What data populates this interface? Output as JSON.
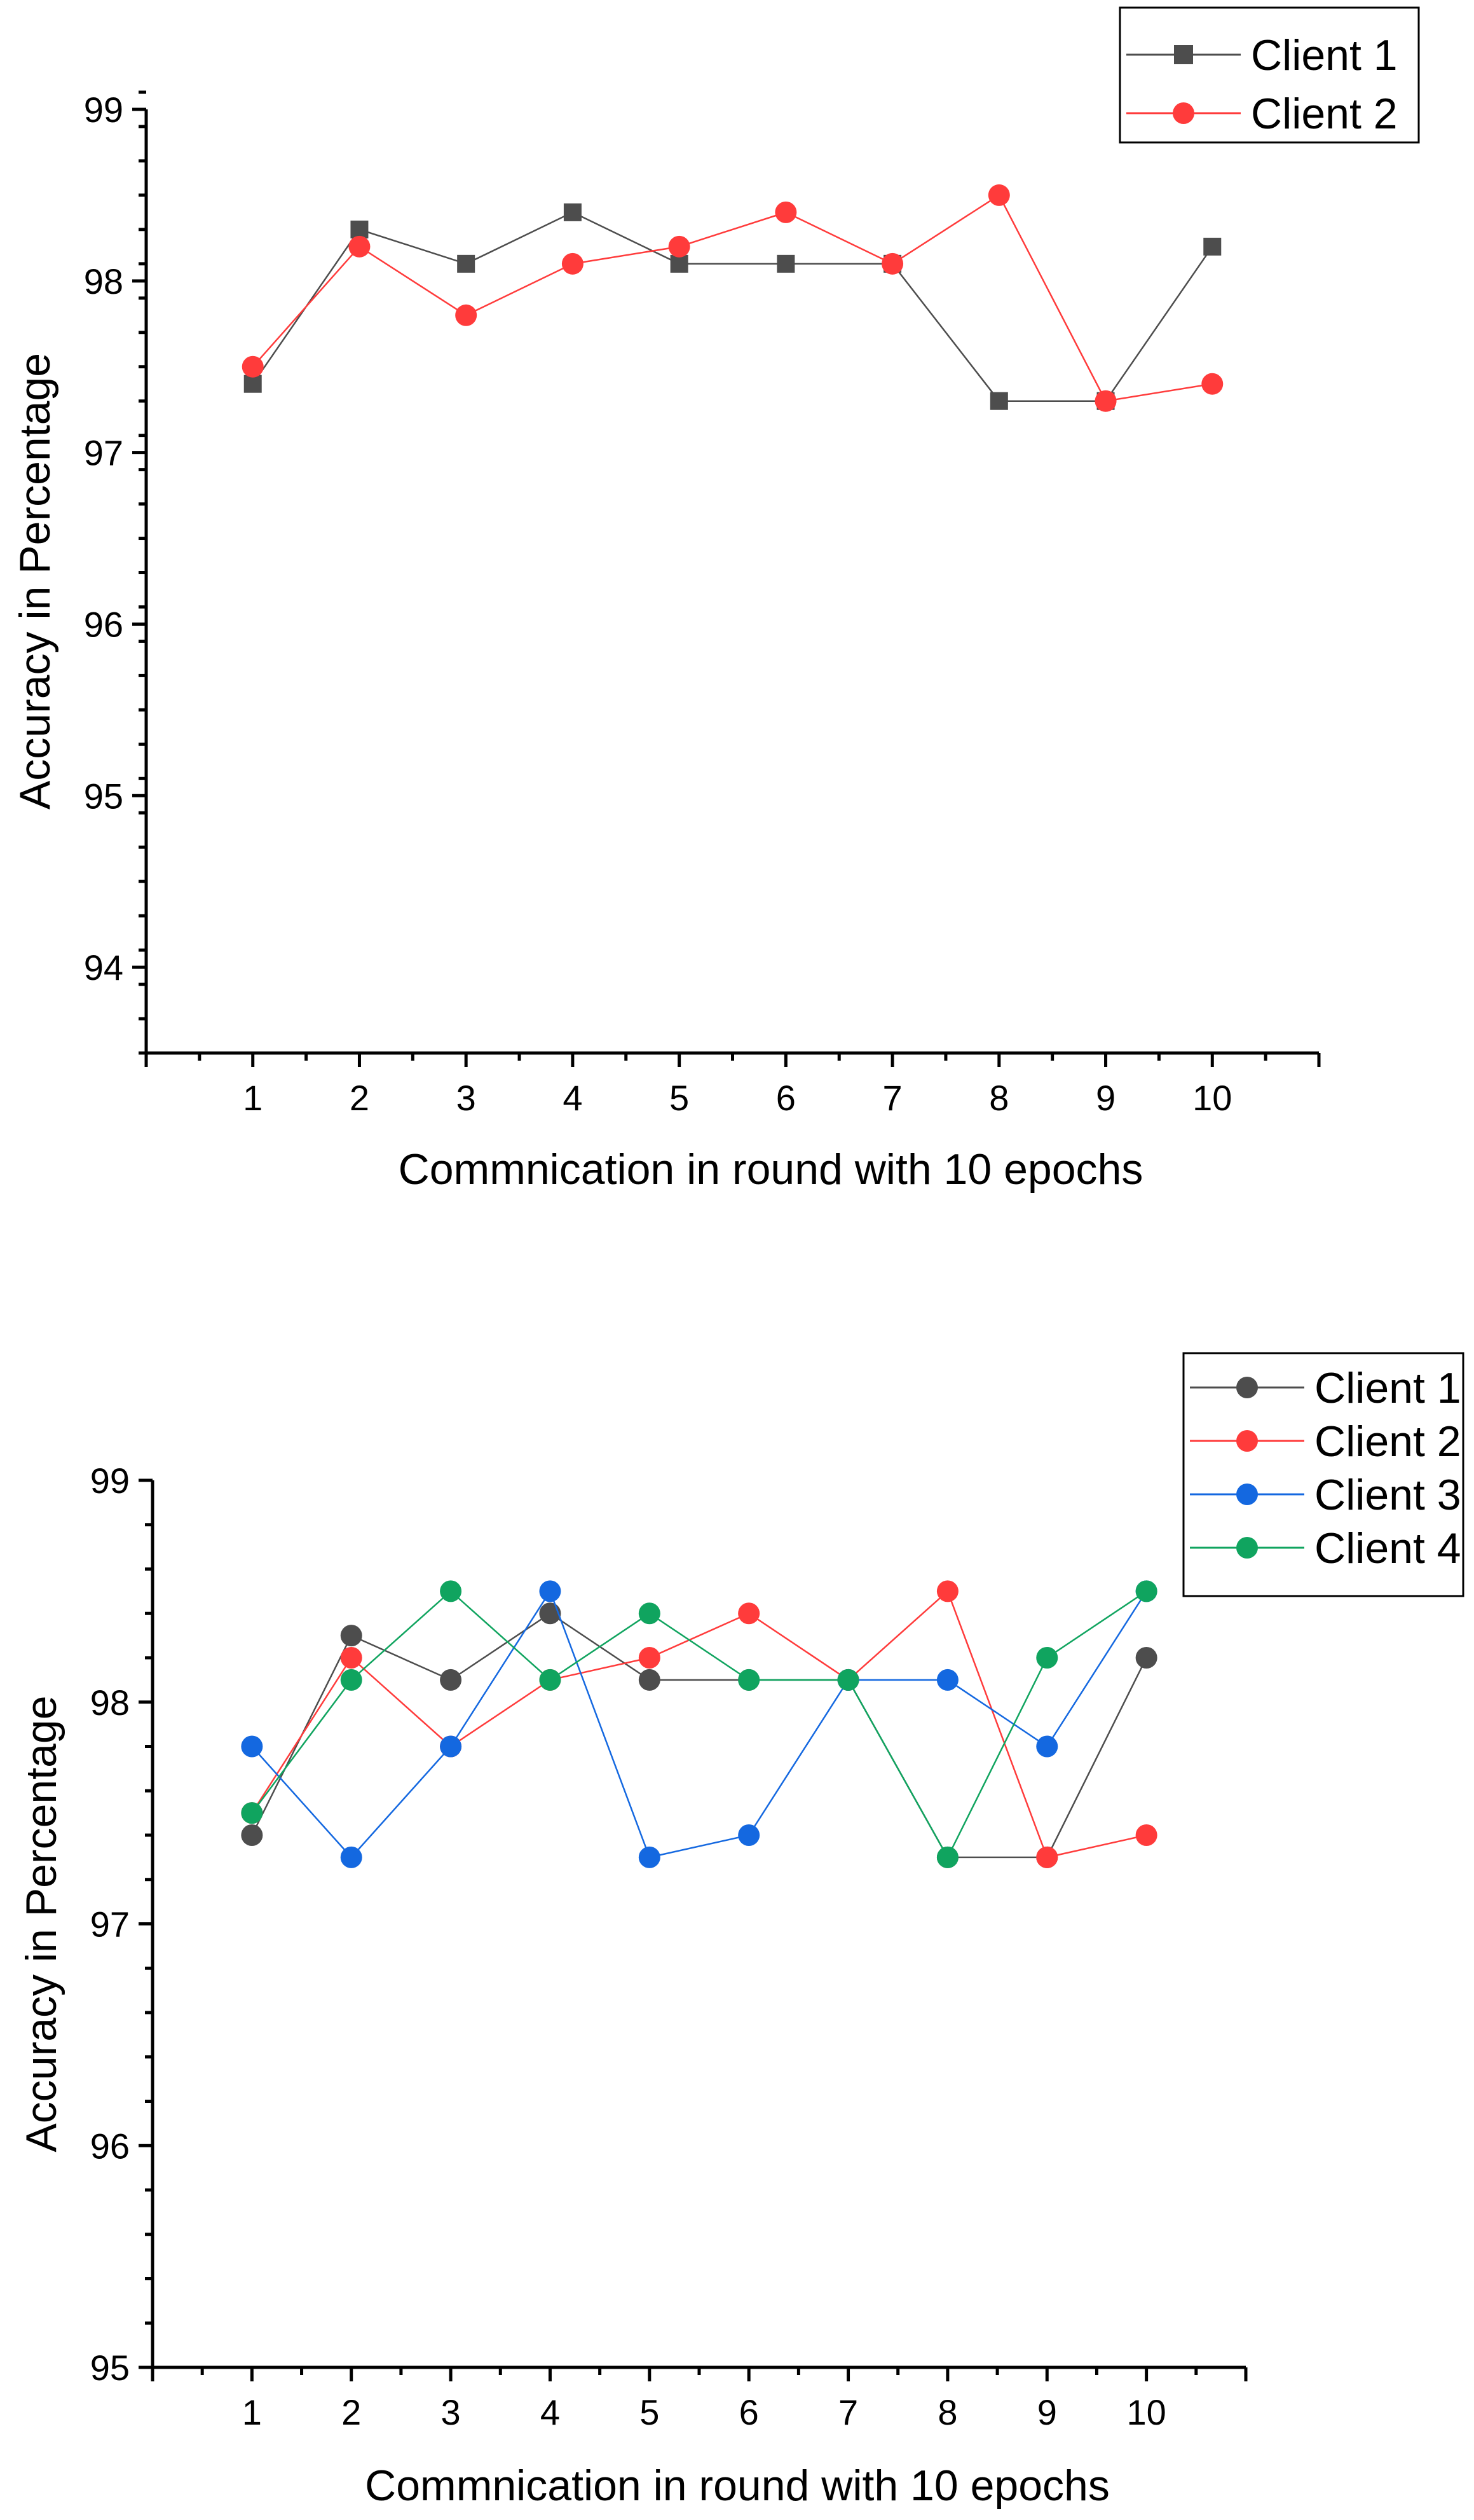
{
  "chart_data": [
    {
      "type": "line",
      "title": "",
      "xlabel": "Commnication in round with 10 epochs",
      "ylabel": "Accuracy in Percentage",
      "x": [
        1,
        2,
        3,
        4,
        5,
        6,
        7,
        8,
        9,
        10
      ],
      "xlim": [
        0,
        11
      ],
      "ylim": [
        93.5,
        99
      ],
      "yticks": [
        94,
        95,
        96,
        97,
        98,
        99
      ],
      "legend_position": "top-right",
      "series": [
        {
          "name": "Client 1",
          "color": "#4d4d4d",
          "marker": "square",
          "values": [
            97.4,
            98.3,
            98.1,
            98.4,
            98.1,
            98.1,
            98.1,
            97.3,
            97.3,
            98.2
          ]
        },
        {
          "name": "Client 2",
          "color": "#ff3b3b",
          "marker": "circle",
          "values": [
            97.5,
            98.2,
            97.8,
            98.1,
            98.2,
            98.4,
            98.1,
            98.5,
            97.3,
            97.4
          ]
        }
      ]
    },
    {
      "type": "line",
      "title": "",
      "xlabel": "Commnication in round with 10 epochs",
      "ylabel": "Accuracy in Percentage",
      "x": [
        1,
        2,
        3,
        4,
        5,
        6,
        7,
        8,
        9,
        10
      ],
      "xlim": [
        0,
        11
      ],
      "ylim": [
        95,
        99
      ],
      "yticks": [
        95,
        96,
        97,
        98,
        99
      ],
      "legend_position": "top-right",
      "series": [
        {
          "name": "Client 1",
          "color": "#4d4d4d",
          "marker": "circle",
          "values": [
            97.4,
            98.3,
            98.1,
            98.4,
            98.1,
            98.1,
            98.1,
            97.3,
            97.3,
            98.2
          ]
        },
        {
          "name": "Client 2",
          "color": "#ff3b3b",
          "marker": "circle",
          "values": [
            97.5,
            98.2,
            97.8,
            98.1,
            98.2,
            98.4,
            98.1,
            98.5,
            97.3,
            97.4
          ]
        },
        {
          "name": "Client 3",
          "color": "#1468e0",
          "marker": "circle",
          "values": [
            97.8,
            97.3,
            97.8,
            98.5,
            97.3,
            97.4,
            98.1,
            98.1,
            97.8,
            98.5
          ]
        },
        {
          "name": "Client 4",
          "color": "#10a45f",
          "marker": "circle",
          "values": [
            97.5,
            98.1,
            98.5,
            98.1,
            98.4,
            98.1,
            98.1,
            97.3,
            98.2,
            98.5
          ]
        }
      ]
    }
  ]
}
